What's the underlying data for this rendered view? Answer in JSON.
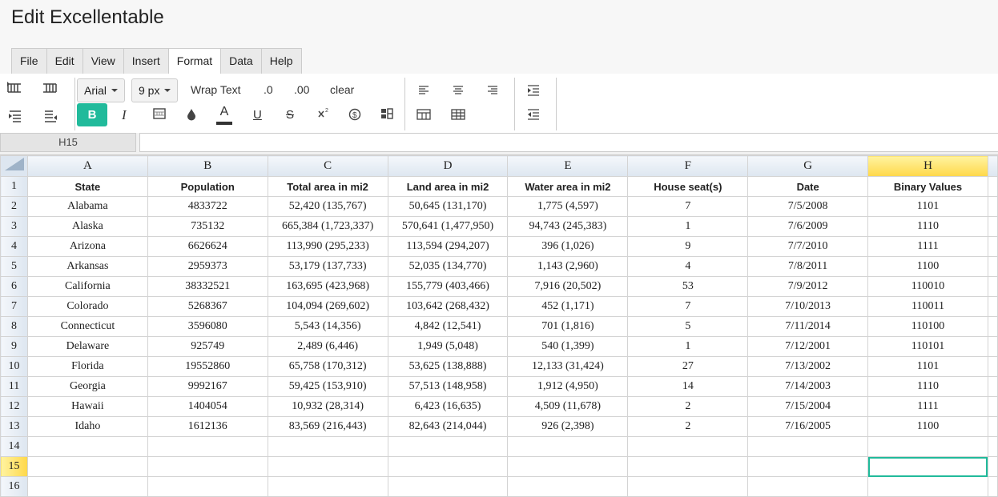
{
  "app": {
    "title": "Edit Excellentable"
  },
  "menu": {
    "tabs": [
      "File",
      "Edit",
      "View",
      "Insert",
      "Format",
      "Data",
      "Help"
    ],
    "active": "Format"
  },
  "toolbar": {
    "font": "Arial",
    "size": "9 px",
    "wrap_text": "Wrap Text",
    "dec_less": ".0",
    "dec_more": ".00",
    "clear": "clear",
    "bold": "B",
    "italic": "I",
    "font_color": "A",
    "underline": "U",
    "strike": "S"
  },
  "formula": {
    "cell_ref": "H15",
    "value": ""
  },
  "grid": {
    "columns": [
      "A",
      "B",
      "C",
      "D",
      "E",
      "F",
      "G",
      "H"
    ],
    "selected_column": "H",
    "selected_row": "15",
    "rows": [
      {
        "n": "1",
        "cells": [
          "State",
          "Population",
          "Total area in mi2",
          "Land area in mi2",
          "Water area in mi2",
          "House seat(s)",
          "Date",
          "Binary Values"
        ]
      },
      {
        "n": "2",
        "cells": [
          "Alabama",
          "4833722",
          "52,420 (135,767)",
          "50,645 (131,170)",
          "1,775 (4,597)",
          "7",
          "7/5/2008",
          "1101"
        ]
      },
      {
        "n": "3",
        "cells": [
          "Alaska",
          "735132",
          "665,384 (1,723,337)",
          "570,641 (1,477,950)",
          "94,743 (245,383)",
          "1",
          "7/6/2009",
          "1110"
        ]
      },
      {
        "n": "4",
        "cells": [
          "Arizona",
          "6626624",
          "113,990 (295,233)",
          "113,594 (294,207)",
          "396 (1,026)",
          "9",
          "7/7/2010",
          "1111"
        ]
      },
      {
        "n": "5",
        "cells": [
          "Arkansas",
          "2959373",
          "53,179 (137,733)",
          "52,035 (134,770)",
          "1,143 (2,960)",
          "4",
          "7/8/2011",
          "1100"
        ]
      },
      {
        "n": "6",
        "cells": [
          "California",
          "38332521",
          "163,695 (423,968)",
          "155,779 (403,466)",
          "7,916 (20,502)",
          "53",
          "7/9/2012",
          "110010"
        ]
      },
      {
        "n": "7",
        "cells": [
          "Colorado",
          "5268367",
          "104,094 (269,602)",
          "103,642 (268,432)",
          "452 (1,171)",
          "7",
          "7/10/2013",
          "110011"
        ]
      },
      {
        "n": "8",
        "cells": [
          "Connecticut",
          "3596080",
          "5,543 (14,356)",
          "4,842 (12,541)",
          "701 (1,816)",
          "5",
          "7/11/2014",
          "110100"
        ]
      },
      {
        "n": "9",
        "cells": [
          "Delaware",
          "925749",
          "2,489 (6,446)",
          "1,949 (5,048)",
          "540 (1,399)",
          "1",
          "7/12/2001",
          "110101"
        ]
      },
      {
        "n": "10",
        "cells": [
          "Florida",
          "19552860",
          "65,758 (170,312)",
          "53,625 (138,888)",
          "12,133 (31,424)",
          "27",
          "7/13/2002",
          "1101"
        ]
      },
      {
        "n": "11",
        "cells": [
          "Georgia",
          "9992167",
          "59,425 (153,910)",
          "57,513 (148,958)",
          "1,912 (4,950)",
          "14",
          "7/14/2003",
          "1110"
        ]
      },
      {
        "n": "12",
        "cells": [
          "Hawaii",
          "1404054",
          "10,932 (28,314)",
          "6,423 (16,635)",
          "4,509 (11,678)",
          "2",
          "7/15/2004",
          "1111"
        ]
      },
      {
        "n": "13",
        "cells": [
          "Idaho",
          "1612136",
          "83,569 (216,443)",
          "82,643 (214,044)",
          "926 (2,398)",
          "2",
          "7/16/2005",
          "1100"
        ]
      },
      {
        "n": "14",
        "cells": [
          "",
          "",
          "",
          "",
          "",
          "",
          "",
          ""
        ]
      },
      {
        "n": "15",
        "cells": [
          "",
          "",
          "",
          "",
          "",
          "",
          "",
          ""
        ]
      },
      {
        "n": "16",
        "cells": [
          "",
          "",
          "",
          "",
          "",
          "",
          "",
          ""
        ]
      }
    ]
  },
  "colors": {
    "accent": "#21ba9b",
    "selected_header": "#ffd84a"
  }
}
